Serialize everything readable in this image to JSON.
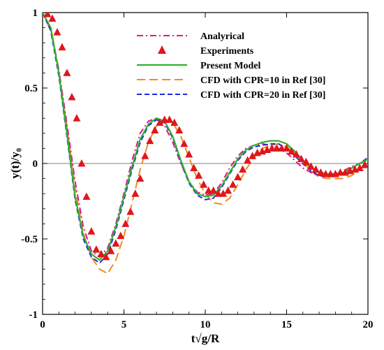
{
  "chart_data": {
    "type": "line",
    "title": "",
    "xlabel": "t√g/R",
    "ylabel": "y(t)/y₀",
    "xlim": [
      0,
      20
    ],
    "ylim": [
      -1,
      1
    ],
    "xticks": [
      "0",
      "5",
      "10",
      "15",
      "20"
    ],
    "yticks": [
      "-1",
      "-0.5",
      "0",
      "0.5",
      "1"
    ],
    "grid": false,
    "legend_position": "top-right",
    "series": [
      {
        "name": "Analyrical",
        "style": "dash-dot",
        "color": "#e0168c",
        "x": [
          0,
          0.5,
          1,
          1.5,
          2,
          2.5,
          3,
          3.5,
          4,
          4.5,
          5,
          5.5,
          6,
          6.5,
          7,
          7.5,
          8,
          8.5,
          9,
          9.5,
          10,
          10.5,
          11,
          11.5,
          12,
          12.5,
          13,
          13.5,
          14,
          14.5,
          15,
          15.5,
          16,
          16.5,
          17,
          17.5,
          18,
          18.5,
          19,
          19.5,
          20
        ],
        "y": [
          1,
          0.88,
          0.62,
          0.26,
          -0.12,
          -0.42,
          -0.58,
          -0.62,
          -0.56,
          -0.4,
          -0.2,
          0.02,
          0.2,
          0.28,
          0.3,
          0.25,
          0.14,
          0,
          -0.12,
          -0.19,
          -0.21,
          -0.2,
          -0.13,
          -0.03,
          0.05,
          0.1,
          0.12,
          0.13,
          0.12,
          0.1,
          0.07,
          0.02,
          -0.03,
          -0.06,
          -0.08,
          -0.08,
          -0.07,
          -0.05,
          -0.02,
          0,
          0.02
        ]
      },
      {
        "name": "Experiments",
        "style": "markers",
        "color": "#e0161b",
        "x": [
          0.3,
          0.6,
          0.9,
          1.2,
          1.5,
          1.8,
          2.1,
          2.4,
          2.7,
          3.0,
          3.3,
          3.6,
          3.9,
          4.2,
          4.5,
          4.8,
          5.1,
          5.4,
          5.7,
          6.0,
          6.3,
          6.6,
          6.9,
          7.2,
          7.5,
          7.8,
          8.1,
          8.4,
          8.7,
          9.0,
          9.3,
          9.6,
          9.9,
          10.2,
          10.5,
          10.8,
          11.1,
          11.4,
          11.7,
          12.0,
          12.3,
          12.6,
          12.9,
          13.2,
          13.5,
          13.8,
          14.1,
          14.4,
          14.7,
          15.0,
          15.3,
          15.6,
          15.9,
          16.2,
          16.5,
          16.8,
          17.1,
          17.4,
          17.7,
          18.0,
          18.3,
          18.6,
          18.9,
          19.2,
          19.5,
          19.8
        ],
        "y": [
          0.99,
          0.96,
          0.87,
          0.77,
          0.6,
          0.44,
          0.3,
          0.0,
          -0.22,
          -0.45,
          -0.57,
          -0.6,
          -0.62,
          -0.58,
          -0.53,
          -0.48,
          -0.4,
          -0.32,
          -0.2,
          -0.1,
          0.05,
          0.15,
          0.22,
          0.27,
          0.29,
          0.29,
          0.27,
          0.22,
          0.13,
          0.06,
          -0.03,
          -0.08,
          -0.14,
          -0.18,
          -0.18,
          -0.2,
          -0.2,
          -0.18,
          -0.14,
          -0.09,
          -0.04,
          0.02,
          0.05,
          0.07,
          0.08,
          0.09,
          0.1,
          0.1,
          0.1,
          0.1,
          0.08,
          0.06,
          0.03,
          0.01,
          -0.02,
          -0.04,
          -0.06,
          -0.07,
          -0.07,
          -0.07,
          -0.06,
          -0.06,
          -0.05,
          -0.04,
          -0.03,
          -0.01
        ]
      },
      {
        "name": "Present Model",
        "style": "solid",
        "color": "#2fb32a",
        "x": [
          0,
          0.5,
          1,
          1.5,
          2,
          2.5,
          3,
          3.5,
          4,
          4.5,
          5,
          5.5,
          6,
          6.5,
          7,
          7.5,
          8,
          8.5,
          9,
          9.5,
          10,
          10.5,
          11,
          11.5,
          12,
          12.5,
          13,
          13.5,
          14,
          14.5,
          15,
          15.5,
          16,
          16.5,
          17,
          17.5,
          18,
          18.5,
          19,
          19.5,
          20
        ],
        "y": [
          1,
          0.9,
          0.6,
          0.2,
          -0.22,
          -0.48,
          -0.6,
          -0.64,
          -0.58,
          -0.42,
          -0.22,
          -0.02,
          0.16,
          0.26,
          0.3,
          0.28,
          0.18,
          0.02,
          -0.12,
          -0.2,
          -0.22,
          -0.21,
          -0.15,
          -0.06,
          0.03,
          0.09,
          0.12,
          0.14,
          0.15,
          0.15,
          0.13,
          0.08,
          0.02,
          -0.03,
          -0.06,
          -0.07,
          -0.07,
          -0.06,
          -0.03,
          0,
          0.03
        ]
      },
      {
        "name": "CFD with CPR=10 in Ref [30]",
        "style": "long-dash",
        "color": "#f08c1e",
        "x": [
          0,
          0.5,
          1,
          1.5,
          2,
          2.5,
          3,
          3.5,
          4,
          4.5,
          5,
          5.5,
          6,
          6.5,
          7,
          7.5,
          8,
          8.5,
          9,
          9.5,
          10,
          10.5,
          11,
          11.5,
          12,
          12.5,
          13,
          13.5,
          14,
          14.5,
          15,
          15.5,
          16,
          16.5,
          17,
          17.5,
          18,
          18.5,
          19,
          19.5,
          20
        ],
        "y": [
          1,
          0.9,
          0.62,
          0.24,
          -0.16,
          -0.46,
          -0.62,
          -0.7,
          -0.73,
          -0.64,
          -0.48,
          -0.26,
          -0.04,
          0.14,
          0.25,
          0.29,
          0.27,
          0.18,
          0.04,
          -0.1,
          -0.2,
          -0.26,
          -0.27,
          -0.23,
          -0.14,
          -0.04,
          0.04,
          0.1,
          0.12,
          0.13,
          0.11,
          0.07,
          0.01,
          -0.05,
          -0.09,
          -0.1,
          -0.1,
          -0.1,
          -0.08,
          -0.04,
          0
        ]
      },
      {
        "name": "CFD with CPR=20 in Ref [30]",
        "style": "dash",
        "color": "#1e2adc",
        "x": [
          0,
          0.5,
          1,
          1.5,
          2,
          2.5,
          3,
          3.5,
          4,
          4.5,
          5,
          5.5,
          6,
          6.5,
          7,
          7.5,
          8,
          8.5,
          9,
          9.5,
          10,
          10.5,
          11,
          11.5,
          12,
          12.5,
          13,
          13.5,
          14,
          14.5,
          15,
          15.5,
          16,
          16.5,
          17,
          17.5,
          18,
          18.5,
          19,
          19.5,
          20
        ],
        "y": [
          1,
          0.88,
          0.58,
          0.18,
          -0.24,
          -0.5,
          -0.62,
          -0.66,
          -0.6,
          -0.44,
          -0.24,
          -0.04,
          0.14,
          0.25,
          0.29,
          0.27,
          0.17,
          0.01,
          -0.13,
          -0.21,
          -0.24,
          -0.23,
          -0.16,
          -0.07,
          0.02,
          0.08,
          0.11,
          0.12,
          0.13,
          0.13,
          0.1,
          0.05,
          0,
          -0.05,
          -0.08,
          -0.09,
          -0.08,
          -0.06,
          -0.03,
          0,
          0.04
        ]
      }
    ]
  }
}
